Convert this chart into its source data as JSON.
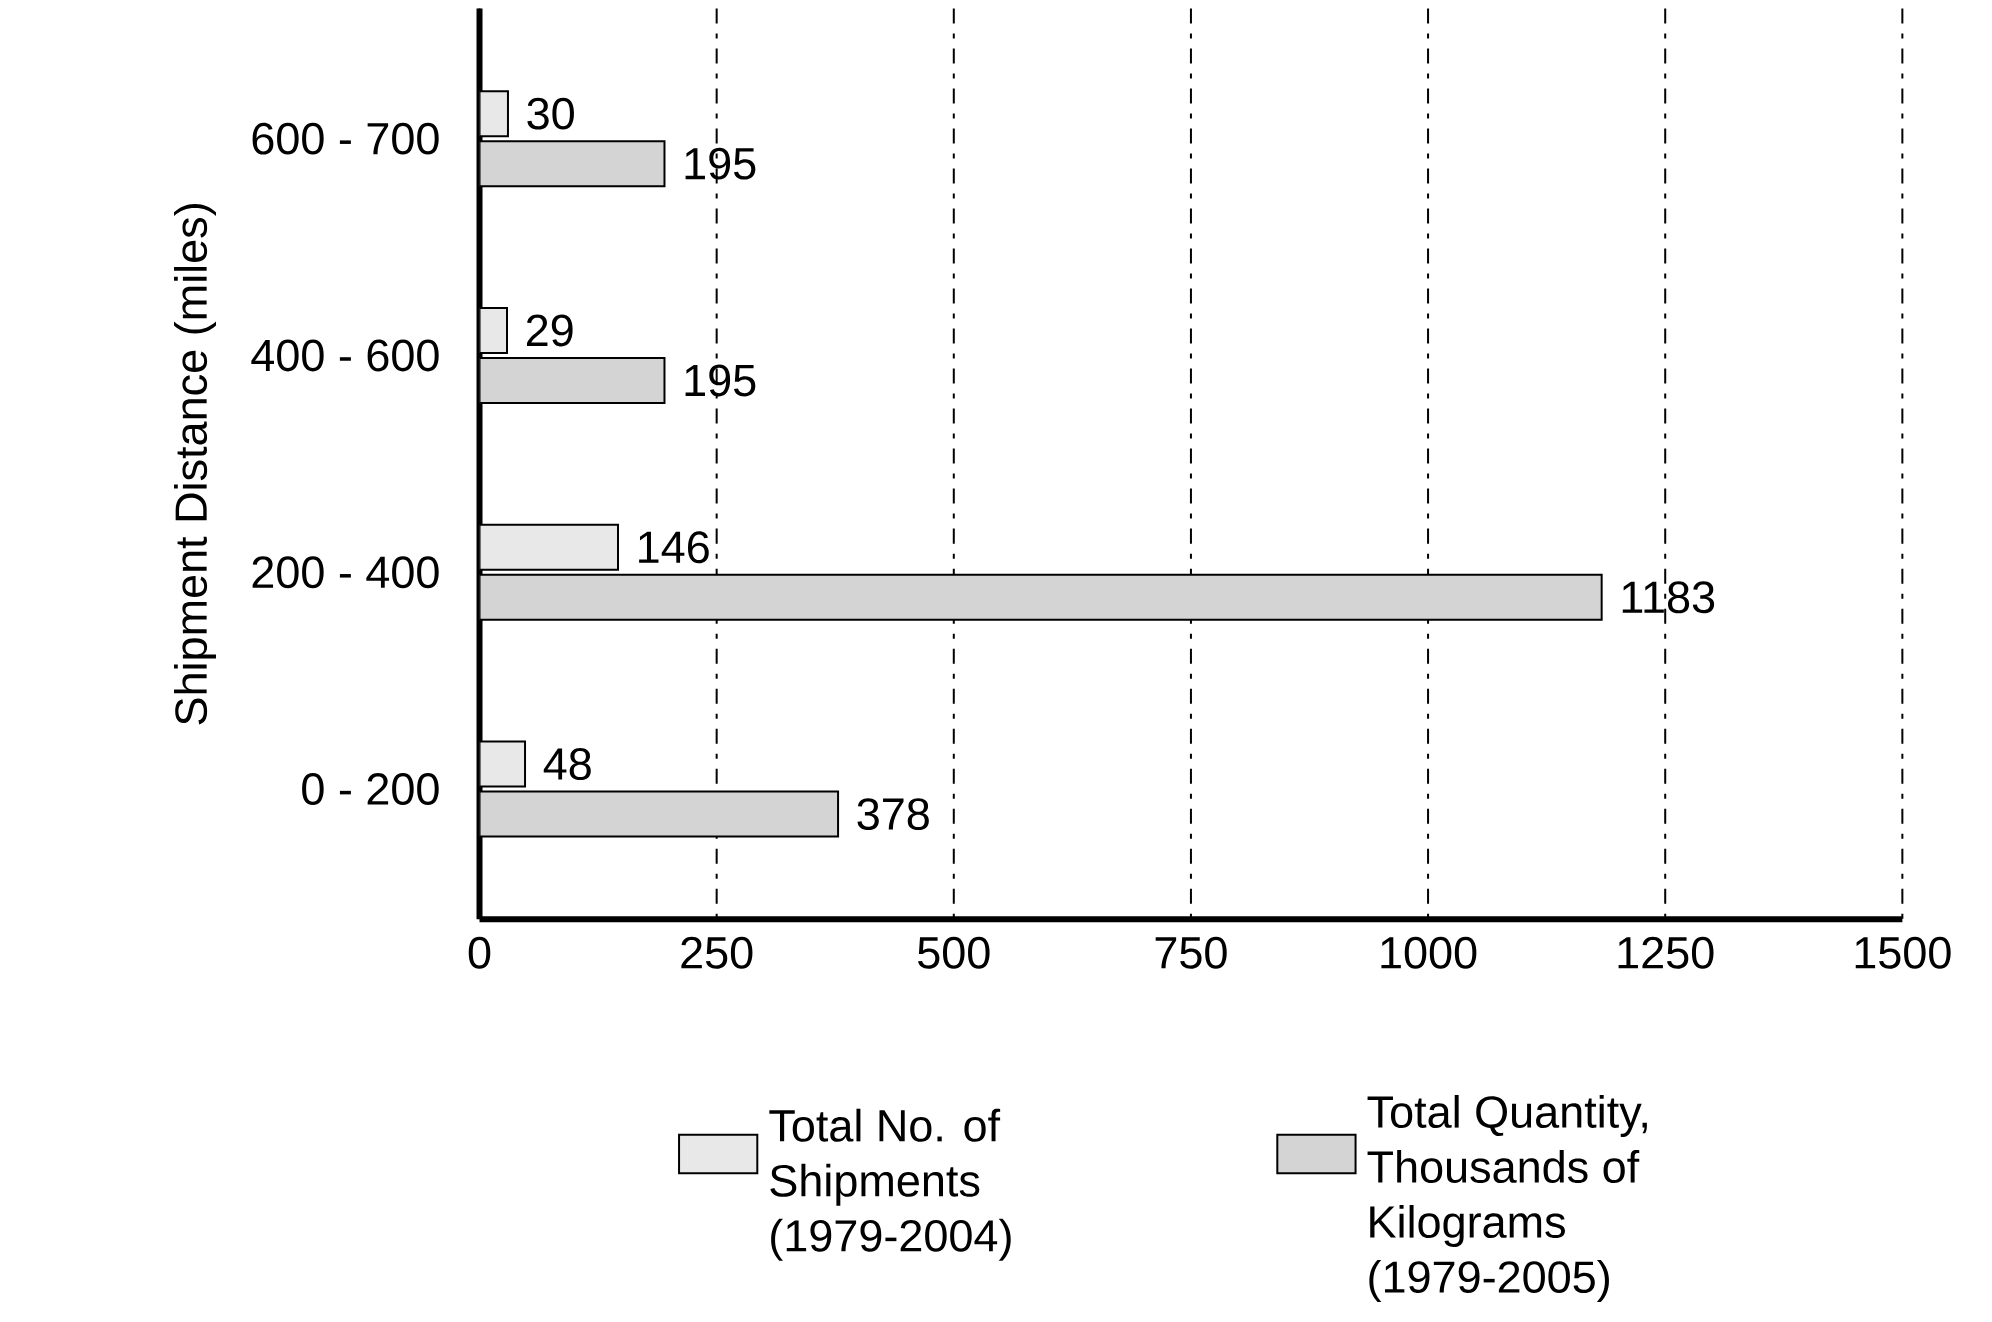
{
  "chart_data": {
    "type": "bar",
    "orientation": "horizontal",
    "ylabel": "Shipment Distance (miles)",
    "categories": [
      "600 - 700",
      "400 - 600",
      "200 - 400",
      "0 - 200"
    ],
    "series": [
      {
        "name": "Total No. of Shipments (1979-2004)",
        "color": "#e8e8e8",
        "values": [
          30,
          29,
          146,
          48
        ]
      },
      {
        "name": "Total Quantity, Thousands of Kilograms (1979-2005)",
        "color": "#d4d4d4",
        "values": [
          195,
          195,
          1183,
          378
        ]
      }
    ],
    "xlim": [
      0,
      1500
    ],
    "xticks": [
      0,
      250,
      500,
      750,
      1000,
      1250,
      1500
    ],
    "grid": "x",
    "legend": "bottom",
    "data_labels": true
  }
}
